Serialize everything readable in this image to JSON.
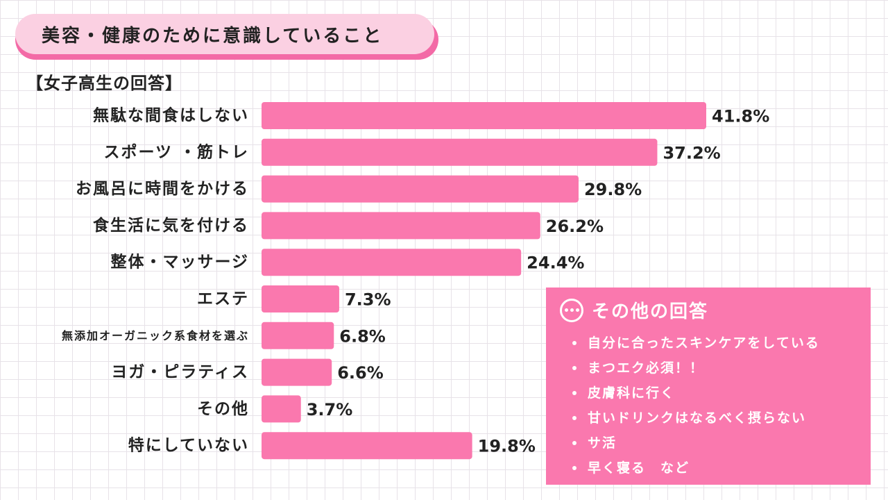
{
  "title": "美容・健康のために意識していること",
  "subtitle": "【女子高生の回答】",
  "colors": {
    "bar": "#fa78ae",
    "title_pill": "#fbd0e2",
    "title_shadow": "#f36aa6"
  },
  "chart_data": {
    "type": "bar",
    "orientation": "horizontal",
    "title": "美容・健康のために意識していること",
    "subtitle": "【女子高生の回答】",
    "categories": [
      "無駄な間食はしない",
      "スポーツ ・筋トレ",
      "お風呂に時間をかける",
      "食生活に気を付ける",
      "整体・マッサージ",
      "エステ",
      "無添加オーガニック系食材を選ぶ",
      "ヨガ・ピラティス",
      "その他",
      "特にしていない"
    ],
    "values": [
      41.8,
      37.2,
      29.8,
      26.2,
      24.4,
      7.3,
      6.8,
      6.6,
      3.7,
      19.8
    ],
    "value_labels": [
      "41.8%",
      "37.2%",
      "29.8%",
      "26.2%",
      "24.4%",
      "7.3%",
      "6.8%",
      "6.6%",
      "3.7%",
      "19.8%"
    ],
    "unit": "%",
    "xlim": [
      0,
      41.8
    ],
    "grid": false,
    "legend": "none"
  },
  "other_answers": {
    "icon": "ellipsis-circle-icon",
    "title": "その他の回答",
    "items": [
      "自分に合ったスキンケアをしている",
      "まつエク必須！！",
      "皮膚科に行く",
      "甘いドリンクはなるべく摂らない",
      "サ活",
      "早く寝る　など"
    ]
  }
}
